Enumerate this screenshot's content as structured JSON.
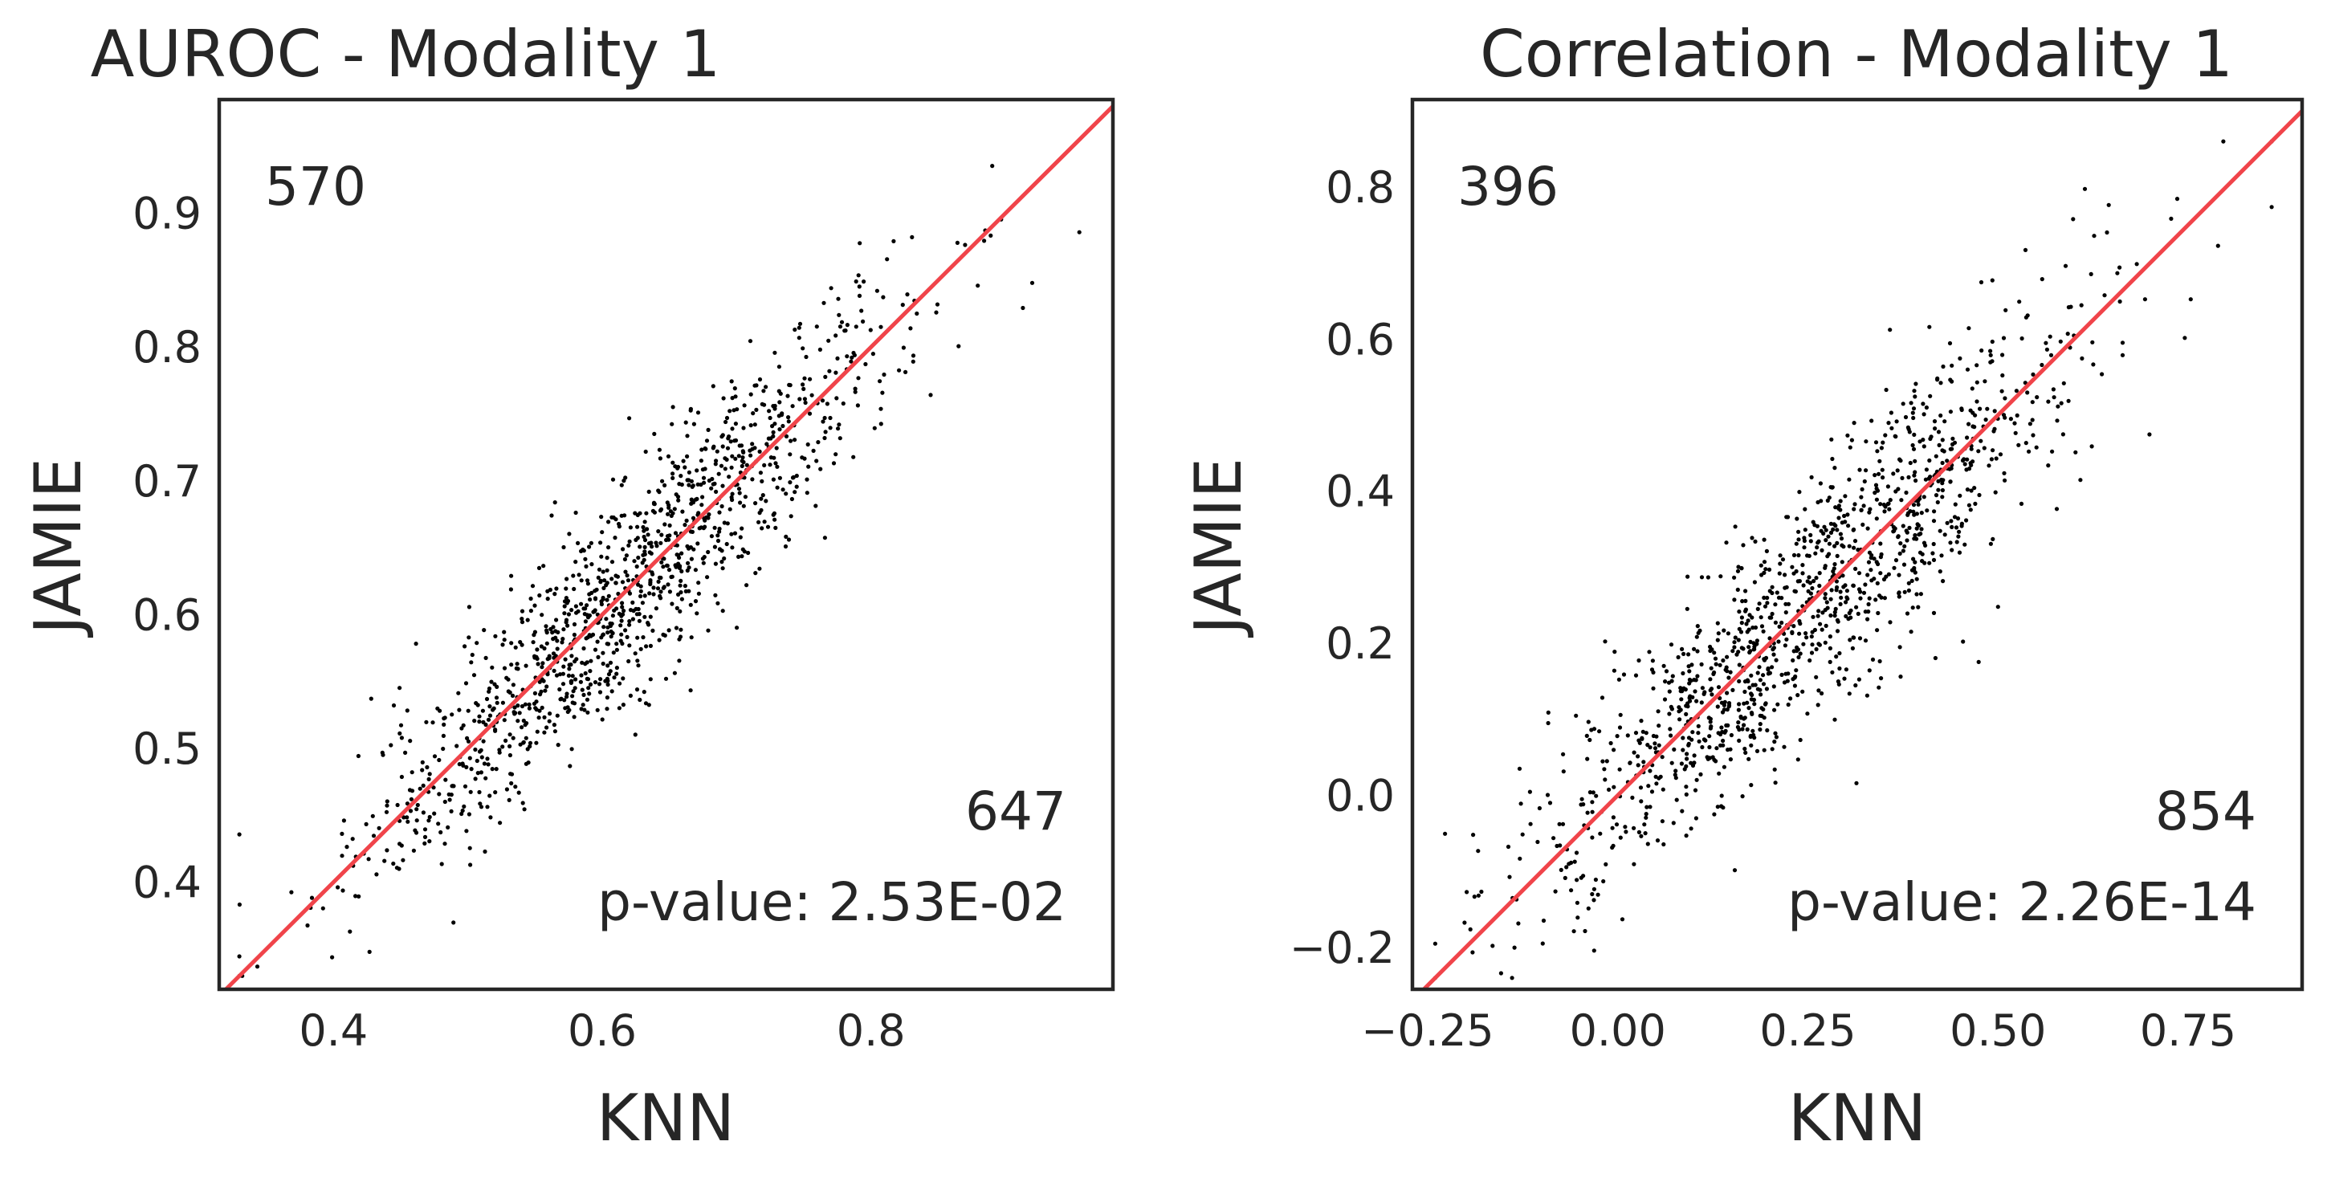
{
  "chart_data": [
    {
      "type": "scatter",
      "title": "AUROC - Modality 1",
      "xlabel": "KNN",
      "ylabel": "JAMIE",
      "xlim": [
        0.315,
        0.98
      ],
      "ylim": [
        0.32,
        0.985
      ],
      "xticks": [
        0.4,
        0.6,
        0.8
      ],
      "xtick_labels": [
        "0.4",
        "0.6",
        "0.8"
      ],
      "yticks": [
        0.4,
        0.5,
        0.6,
        0.7,
        0.8,
        0.9
      ],
      "ytick_labels": [
        "0.4",
        "0.5",
        "0.6",
        "0.7",
        "0.8",
        "0.9"
      ],
      "count_above": "570",
      "count_below": "647",
      "pvalue_text": "p-value: 2.53E-02",
      "reference_line": "y = x",
      "reference_color": "#f0444a",
      "point_color": "#000000",
      "grid": false,
      "n_points": 1217,
      "x_mean": 0.62,
      "x_sd": 0.1,
      "y_slope": 1.0,
      "y_noise_sd": 0.04,
      "range": [
        0.33,
        0.955
      ]
    },
    {
      "type": "scatter",
      "title": "Correlation - Modality 1",
      "xlabel": "KNN",
      "ylabel": "JAMIE",
      "xlim": [
        -0.27,
        0.9
      ],
      "ylim": [
        -0.255,
        0.915
      ],
      "xticks": [
        -0.25,
        0.0,
        0.25,
        0.5,
        0.75
      ],
      "xtick_labels": [
        "−0.25",
        "0.00",
        "0.25",
        "0.50",
        "0.75"
      ],
      "yticks": [
        -0.2,
        0.0,
        0.2,
        0.4,
        0.6,
        0.8
      ],
      "ytick_labels": [
        "−0.2",
        "0.0",
        "0.2",
        "0.4",
        "0.6",
        "0.8"
      ],
      "count_above": "396",
      "count_below": "854",
      "pvalue_text": "p-value: 2.26E-14",
      "reference_line": "y = x",
      "reference_color": "#f0444a",
      "point_color": "#000000",
      "grid": false,
      "n_points": 1250,
      "x_mean": 0.25,
      "x_sd": 0.18,
      "y_slope": 0.93,
      "y_noise_sd": 0.08,
      "range": [
        -0.24,
        0.86
      ]
    }
  ]
}
